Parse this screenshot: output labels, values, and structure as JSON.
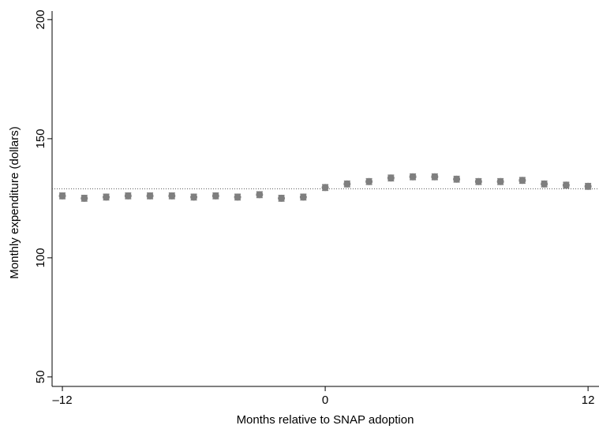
{
  "chart_data": {
    "type": "scatter",
    "xlabel": "Months relative to SNAP adoption",
    "ylabel": "Monthly expenditure (dollars)",
    "x": [
      -12,
      -11,
      -10,
      -9,
      -8,
      -7,
      -6,
      -5,
      -4,
      -3,
      -2,
      -1,
      0,
      1,
      2,
      3,
      4,
      5,
      6,
      7,
      8,
      9,
      10,
      11,
      12
    ],
    "series": [
      {
        "color": "#7f7f7f",
        "values": [
          126,
          125,
          125.5,
          126,
          126,
          126,
          125.5,
          126,
          125.5,
          126.5,
          125,
          125.5,
          129.5,
          131,
          132,
          133.5,
          134,
          134,
          133,
          132,
          132,
          132.5,
          131,
          130.5,
          130
        ],
        "error": [
          1.2,
          1.2,
          1.2,
          1.2,
          1.2,
          1.2,
          1.2,
          1.2,
          1.2,
          1.2,
          1.2,
          1.2,
          1.2,
          1.2,
          1.2,
          1.2,
          1.2,
          1.2,
          1.2,
          1.2,
          1.2,
          1.2,
          1.2,
          1.2,
          1.2
        ]
      }
    ],
    "reference_line": 129,
    "xlim": [
      -12.47,
      12.5
    ],
    "ylim": [
      46,
      203.6
    ],
    "xticks": [
      {
        "value": -12,
        "label": "–12"
      },
      0,
      12
    ],
    "yticks": [
      50,
      100,
      150,
      200
    ]
  }
}
